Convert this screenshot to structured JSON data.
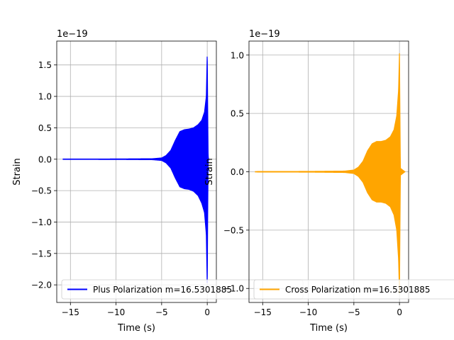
{
  "chart_data": [
    {
      "type": "line",
      "title": "",
      "xlabel": "Time (s)",
      "ylabel": "Strain",
      "offset_text": "1e−19",
      "xlim": [
        -16.5,
        1.0
      ],
      "ylim": [
        -2.28,
        1.88
      ],
      "scale": 1e-19,
      "grid": true,
      "legend_position": "lower-left",
      "x_ticks": [
        {
          "value": -15,
          "label": "−15"
        },
        {
          "value": -10,
          "label": "−10"
        },
        {
          "value": -5,
          "label": "−5"
        },
        {
          "value": 0,
          "label": "0"
        }
      ],
      "y_ticks": [
        {
          "value": 1.5,
          "label": "1.5"
        },
        {
          "value": 1.0,
          "label": "1.0"
        },
        {
          "value": 0.5,
          "label": "0.5"
        },
        {
          "value": 0.0,
          "label": "0.0"
        },
        {
          "value": -0.5,
          "label": "−0.5"
        },
        {
          "value": -1.0,
          "label": "−1.0"
        },
        {
          "value": -1.5,
          "label": "−1.5"
        },
        {
          "value": -2.0,
          "label": "−2.0"
        }
      ],
      "series": [
        {
          "name": "Plus Polarization m=16.5301885",
          "color": "#0000ff",
          "t_start": -15.8,
          "t_end": 0.15,
          "envelope_upper": [
            [
              -15.8,
              0.003
            ],
            [
              -10,
              0.004
            ],
            [
              -6,
              0.008
            ],
            [
              -5,
              0.02
            ],
            [
              -4.5,
              0.06
            ],
            [
              -4,
              0.14
            ],
            [
              -3.5,
              0.3
            ],
            [
              -3,
              0.44
            ],
            [
              -2.5,
              0.47
            ],
            [
              -2,
              0.48
            ],
            [
              -1.5,
              0.5
            ],
            [
              -1,
              0.55
            ],
            [
              -0.6,
              0.62
            ],
            [
              -0.3,
              0.75
            ],
            [
              -0.1,
              1.0
            ],
            [
              0,
              1.7
            ],
            [
              0.05,
              0.8
            ],
            [
              0.1,
              0.05
            ],
            [
              0.15,
              0.0
            ]
          ],
          "envelope_lower": [
            [
              -15.8,
              -0.003
            ],
            [
              -10,
              -0.004
            ],
            [
              -6,
              -0.008
            ],
            [
              -5,
              -0.02
            ],
            [
              -4.5,
              -0.06
            ],
            [
              -4,
              -0.14
            ],
            [
              -3.5,
              -0.3
            ],
            [
              -3,
              -0.44
            ],
            [
              -2.5,
              -0.47
            ],
            [
              -2,
              -0.48
            ],
            [
              -1.5,
              -0.51
            ],
            [
              -1,
              -0.58
            ],
            [
              -0.6,
              -0.7
            ],
            [
              -0.3,
              -0.85
            ],
            [
              -0.1,
              -1.2
            ],
            [
              0,
              -2.05
            ],
            [
              0.05,
              -0.9
            ],
            [
              0.1,
              -0.05
            ],
            [
              0.15,
              0.0
            ]
          ]
        }
      ]
    },
    {
      "type": "line",
      "title": "",
      "xlabel": "Time (s)",
      "ylabel": "Strain",
      "offset_text": "1e−19",
      "xlim": [
        -16.5,
        1.0
      ],
      "ylim": [
        -1.12,
        1.12
      ],
      "scale": 1e-19,
      "grid": true,
      "legend_position": "lower-left",
      "x_ticks": [
        {
          "value": -15,
          "label": "−15"
        },
        {
          "value": -10,
          "label": "−10"
        },
        {
          "value": -5,
          "label": "−5"
        },
        {
          "value": 0,
          "label": "0"
        }
      ],
      "y_ticks": [
        {
          "value": 1.0,
          "label": "1.0"
        },
        {
          "value": 0.5,
          "label": "0.5"
        },
        {
          "value": 0.0,
          "label": "0.0"
        },
        {
          "value": -0.5,
          "label": "−0.5"
        },
        {
          "value": -1.0,
          "label": "−1.0"
        }
      ],
      "series": [
        {
          "name": "Cross Polarization m=16.5301885",
          "color": "#ffa500",
          "t_start": -15.8,
          "t_end": 0.6,
          "envelope_upper": [
            [
              -15.8,
              0.002
            ],
            [
              -10,
              0.003
            ],
            [
              -6,
              0.006
            ],
            [
              -5,
              0.015
            ],
            [
              -4.5,
              0.04
            ],
            [
              -4,
              0.09
            ],
            [
              -3.5,
              0.18
            ],
            [
              -3,
              0.24
            ],
            [
              -2.5,
              0.26
            ],
            [
              -2,
              0.26
            ],
            [
              -1.5,
              0.27
            ],
            [
              -1,
              0.3
            ],
            [
              -0.6,
              0.36
            ],
            [
              -0.3,
              0.48
            ],
            [
              -0.1,
              0.7
            ],
            [
              0,
              1.02
            ],
            [
              0.05,
              0.5
            ],
            [
              0.1,
              0.03
            ],
            [
              0.6,
              0.0
            ]
          ],
          "envelope_lower": [
            [
              -15.8,
              -0.002
            ],
            [
              -10,
              -0.003
            ],
            [
              -6,
              -0.006
            ],
            [
              -5,
              -0.015
            ],
            [
              -4.5,
              -0.04
            ],
            [
              -4,
              -0.09
            ],
            [
              -3.5,
              -0.18
            ],
            [
              -3,
              -0.24
            ],
            [
              -2.5,
              -0.26
            ],
            [
              -2,
              -0.26
            ],
            [
              -1.5,
              -0.27
            ],
            [
              -1,
              -0.3
            ],
            [
              -0.6,
              -0.37
            ],
            [
              -0.3,
              -0.5
            ],
            [
              -0.1,
              -0.75
            ],
            [
              0,
              -1.05
            ],
            [
              0.05,
              -0.5
            ],
            [
              0.1,
              -0.03
            ],
            [
              0.6,
              0.0
            ]
          ]
        }
      ]
    }
  ]
}
